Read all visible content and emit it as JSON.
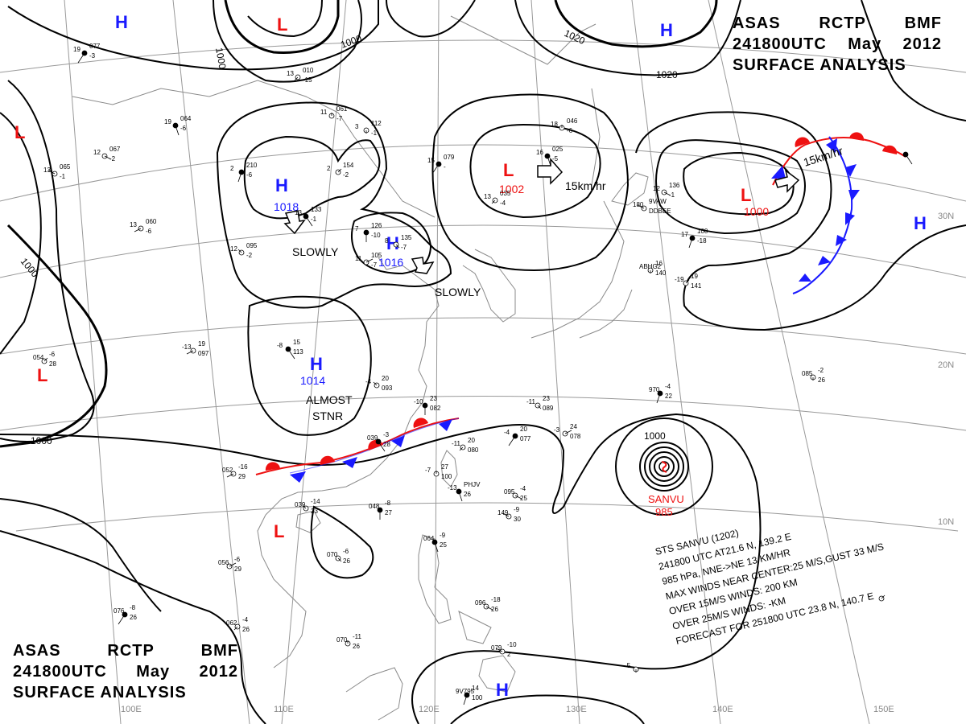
{
  "header_top": {
    "agency": "ASAS",
    "office": "RCTP",
    "code": "BMF",
    "datetime": "241800UTC",
    "month": "May",
    "year": "2012",
    "product": "SURFACE ANALYSIS"
  },
  "header_bottom": {
    "agency": "ASAS",
    "office": "RCTP",
    "code": "BMF",
    "datetime": "241800UTC",
    "month": "May",
    "year": "2012",
    "product": "SURFACE ANALYSIS"
  },
  "colors": {
    "high": "#1a1aff",
    "low": "#ee1111",
    "isobar": "#000000",
    "grid": "#999999",
    "coast": "#8a8a8a"
  },
  "latitude_labels": [
    "30N",
    "20N",
    "10N"
  ],
  "longitude_labels": [
    "100E",
    "110E",
    "120E",
    "130E",
    "140E",
    "150E"
  ],
  "isobar_labels": [
    "1000",
    "1000",
    "1000",
    "1000",
    "1000",
    "1020",
    "1020",
    "1000"
  ],
  "pressure_centers": [
    {
      "type": "H",
      "value": ""
    },
    {
      "type": "L",
      "value": ""
    },
    {
      "type": "H",
      "value": ""
    },
    {
      "type": "L",
      "value": ""
    },
    {
      "type": "H",
      "value": "1018"
    },
    {
      "type": "H",
      "value": "1016"
    },
    {
      "type": "L",
      "value": "1002"
    },
    {
      "type": "L",
      "value": "1000"
    },
    {
      "type": "H",
      "value": ""
    },
    {
      "type": "L",
      "value": ""
    },
    {
      "type": "H",
      "value": "1014"
    },
    {
      "type": "L",
      "value": ""
    },
    {
      "type": "H",
      "value": ""
    }
  ],
  "motion_labels": [
    "SLOWLY",
    "SLOWLY",
    "15km/hr",
    "15km/hr",
    "ALMOST",
    "STNR"
  ],
  "typhoon": {
    "name": "SANVU",
    "pressure": "985",
    "warning_lines": [
      "STS  SANVU  (1202)",
      "241800 UTC  AT21.6 N, 139.2 E",
      "985 hPa, NNE->NE 13 KM/HR",
      "MAX WINDS NEAR CENTER:25 M/S,GUST 33 M/S",
      "OVER 15M/S WINDS: 200 KM",
      "OVER 25M/S WINDS: -KM",
      "FORECAST FOR 251800 UTC 23.8 N, 140.7 E"
    ]
  },
  "station_reports": [
    "19",
    "077",
    "-3",
    "13",
    "010",
    "-15",
    "11",
    "061",
    "-7",
    "19",
    "064",
    "-6",
    "12",
    "067",
    "-2",
    "13",
    "065",
    "-1",
    "2",
    "210",
    "-6",
    "3",
    "112",
    "-1",
    "2",
    "154",
    "-2",
    "13",
    "133",
    "-1",
    "13",
    "060",
    "-6",
    "12",
    "095",
    "-2",
    "7",
    "126",
    "-10",
    "8",
    "135",
    "-7",
    "11",
    "105",
    "-7",
    "15",
    "079",
    "-",
    "13",
    "035",
    "-4",
    "18",
    "046",
    "-6",
    "16",
    "025",
    "-5",
    "12",
    "136",
    "-1",
    "180",
    "9VAW",
    "DDBEE",
    "17",
    "100",
    "-18",
    "ABHG2",
    "16",
    "140",
    "-19",
    "19",
    "141",
    "-8",
    "15",
    "113",
    "-13",
    "19",
    "097",
    "-4",
    "20",
    "093",
    "-10",
    "23",
    "082",
    "-11",
    "23",
    "089",
    "-3",
    "24",
    "078",
    "-4",
    "20",
    "077",
    "-11",
    "20",
    "080",
    "-7",
    "27",
    "100",
    "-13",
    "PHJV",
    "26",
    "095",
    "-4",
    "25",
    "149",
    "-9",
    "30",
    "970",
    "-4",
    "22",
    "085",
    "-2",
    "26",
    "054",
    "-6",
    "28",
    "039",
    "-3",
    "28",
    "052",
    "-16",
    "29",
    "039",
    "-14",
    "23",
    "048",
    "-8",
    "27",
    "070",
    "-6",
    "26",
    "056",
    "-6",
    "29",
    "076",
    "-8",
    "26",
    "062",
    "-4",
    "26",
    "070",
    "-11",
    "26",
    "064",
    "-9",
    "25",
    "096",
    "-18",
    "26",
    "079",
    "-10",
    "2",
    "9V795",
    "14",
    "100",
    "-5"
  ]
}
